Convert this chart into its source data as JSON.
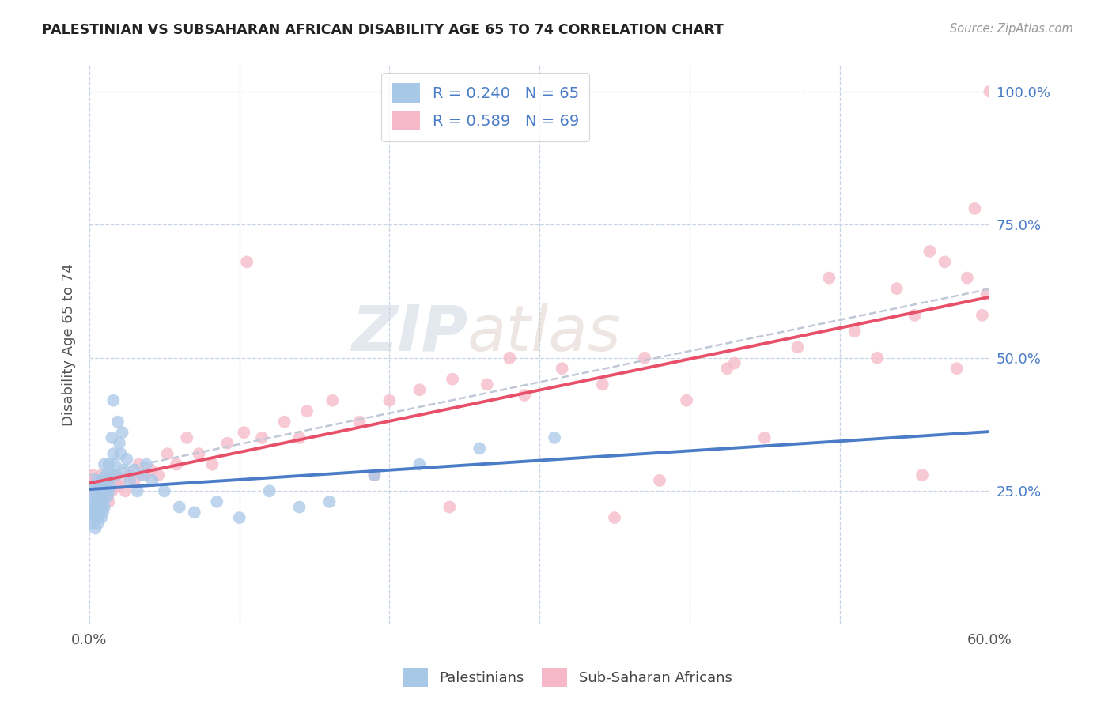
{
  "title": "PALESTINIAN VS SUBSAHARAN AFRICAN DISABILITY AGE 65 TO 74 CORRELATION CHART",
  "source": "Source: ZipAtlas.com",
  "ylabel": "Disability Age 65 to 74",
  "xlim": [
    0.0,
    0.6
  ],
  "ylim": [
    0.0,
    1.05
  ],
  "color_blue": "#a8c8e8",
  "color_pink": "#f5b8c8",
  "color_blue_line": "#4a7cc7",
  "color_pink_line": "#e8506a",
  "color_dashed": "#c0c8d8",
  "watermark_zip": "ZIP",
  "watermark_atlas": "atlas",
  "background": "#ffffff",
  "grid_color": "#c8d4e4",
  "pal_x": [
    0.001,
    0.002,
    0.002,
    0.003,
    0.003,
    0.003,
    0.004,
    0.004,
    0.004,
    0.005,
    0.005,
    0.005,
    0.005,
    0.006,
    0.006,
    0.006,
    0.007,
    0.007,
    0.007,
    0.008,
    0.008,
    0.008,
    0.008,
    0.009,
    0.009,
    0.01,
    0.01,
    0.01,
    0.011,
    0.011,
    0.012,
    0.012,
    0.013,
    0.013,
    0.014,
    0.015,
    0.015,
    0.016,
    0.016,
    0.017,
    0.018,
    0.019,
    0.02,
    0.021,
    0.022,
    0.023,
    0.025,
    0.027,
    0.03,
    0.032,
    0.035,
    0.038,
    0.042,
    0.05,
    0.06,
    0.07,
    0.085,
    0.1,
    0.12,
    0.14,
    0.16,
    0.19,
    0.22,
    0.26,
    0.31
  ],
  "pal_y": [
    0.21,
    0.23,
    0.19,
    0.25,
    0.2,
    0.22,
    0.24,
    0.18,
    0.26,
    0.23,
    0.21,
    0.27,
    0.2,
    0.22,
    0.24,
    0.19,
    0.25,
    0.21,
    0.23,
    0.27,
    0.2,
    0.22,
    0.24,
    0.21,
    0.23,
    0.3,
    0.25,
    0.22,
    0.26,
    0.28,
    0.24,
    0.27,
    0.25,
    0.3,
    0.26,
    0.28,
    0.35,
    0.32,
    0.42,
    0.3,
    0.28,
    0.38,
    0.34,
    0.32,
    0.36,
    0.29,
    0.31,
    0.27,
    0.29,
    0.25,
    0.28,
    0.3,
    0.27,
    0.25,
    0.22,
    0.21,
    0.23,
    0.2,
    0.25,
    0.22,
    0.23,
    0.28,
    0.3,
    0.33,
    0.35
  ],
  "sub_x": [
    0.002,
    0.003,
    0.004,
    0.005,
    0.006,
    0.007,
    0.008,
    0.009,
    0.01,
    0.011,
    0.012,
    0.013,
    0.015,
    0.017,
    0.019,
    0.021,
    0.024,
    0.027,
    0.03,
    0.033,
    0.037,
    0.041,
    0.046,
    0.052,
    0.058,
    0.065,
    0.073,
    0.082,
    0.092,
    0.103,
    0.115,
    0.13,
    0.145,
    0.162,
    0.18,
    0.2,
    0.22,
    0.242,
    0.265,
    0.29,
    0.315,
    0.342,
    0.37,
    0.398,
    0.425,
    0.45,
    0.472,
    0.493,
    0.51,
    0.525,
    0.538,
    0.55,
    0.56,
    0.57,
    0.578,
    0.585,
    0.59,
    0.595,
    0.598,
    0.6,
    0.555,
    0.43,
    0.38,
    0.28,
    0.35,
    0.19,
    0.14,
    0.105,
    0.24
  ],
  "sub_y": [
    0.28,
    0.25,
    0.27,
    0.23,
    0.26,
    0.24,
    0.28,
    0.25,
    0.27,
    0.24,
    0.26,
    0.23,
    0.25,
    0.28,
    0.26,
    0.27,
    0.25,
    0.28,
    0.27,
    0.3,
    0.28,
    0.29,
    0.28,
    0.32,
    0.3,
    0.35,
    0.32,
    0.3,
    0.34,
    0.36,
    0.35,
    0.38,
    0.4,
    0.42,
    0.38,
    0.42,
    0.44,
    0.46,
    0.45,
    0.43,
    0.48,
    0.45,
    0.5,
    0.42,
    0.48,
    0.35,
    0.52,
    0.65,
    0.55,
    0.5,
    0.63,
    0.58,
    0.7,
    0.68,
    0.48,
    0.65,
    0.78,
    0.58,
    0.62,
    1.0,
    0.28,
    0.49,
    0.27,
    0.5,
    0.2,
    0.28,
    0.35,
    0.68,
    0.22
  ]
}
